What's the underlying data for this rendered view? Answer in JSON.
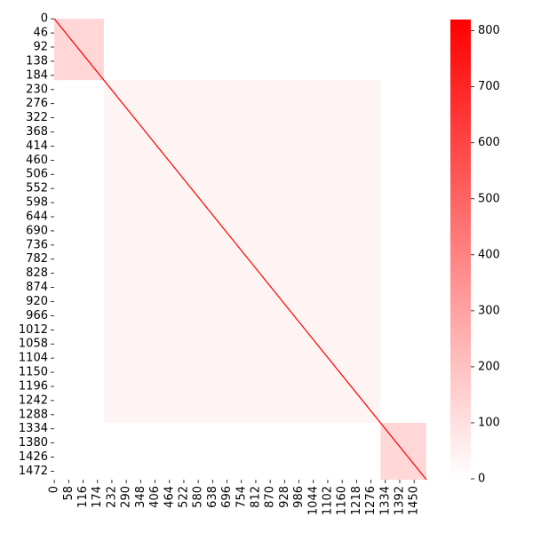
{
  "chart_data": {
    "type": "heatmap",
    "title": "",
    "xlabel": "",
    "ylabel": "",
    "matrix_size": 1500,
    "x_tick_labels": [
      0,
      58,
      116,
      174,
      232,
      290,
      348,
      406,
      464,
      522,
      580,
      638,
      696,
      754,
      812,
      870,
      928,
      986,
      1044,
      1102,
      1160,
      1218,
      1276,
      1334,
      1392,
      1450
    ],
    "y_tick_labels": [
      0,
      46,
      92,
      138,
      184,
      230,
      276,
      322,
      368,
      414,
      460,
      506,
      552,
      598,
      644,
      690,
      736,
      782,
      828,
      874,
      920,
      966,
      1012,
      1058,
      1104,
      1150,
      1196,
      1242,
      1288,
      1334,
      1380,
      1426,
      1472
    ],
    "blocks": [
      {
        "start": 0,
        "end": 200,
        "value": 130
      },
      {
        "start": 200,
        "end": 1315,
        "value": 35
      },
      {
        "start": 1315,
        "end": 1500,
        "value": 130
      }
    ],
    "diagonal_value": 820,
    "colorbar": {
      "min": 0,
      "max": 820,
      "ticks": [
        0,
        100,
        200,
        300,
        400,
        500,
        600,
        700,
        800
      ],
      "low_color": "#ffffff",
      "high_color": "#ff0000"
    }
  }
}
